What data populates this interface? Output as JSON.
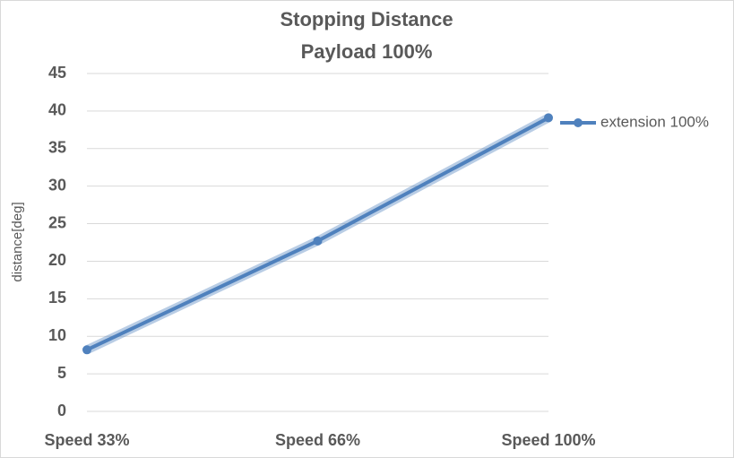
{
  "chart_data": {
    "type": "line",
    "title": "Stopping Distance",
    "subtitle": "Payload 100%",
    "y_label": "distance[deg]",
    "categories": [
      "Speed 33%",
      "Speed 66%",
      "Speed 100%"
    ],
    "series": [
      {
        "name": "extension 100%",
        "color": "#4f81bd",
        "values": [
          8.2,
          22.7,
          39.1
        ]
      }
    ],
    "ylim": [
      0,
      45
    ],
    "yticks": [
      0,
      5,
      10,
      15,
      20,
      25,
      30,
      35,
      40,
      45
    ],
    "grid": true,
    "legend": "right"
  }
}
